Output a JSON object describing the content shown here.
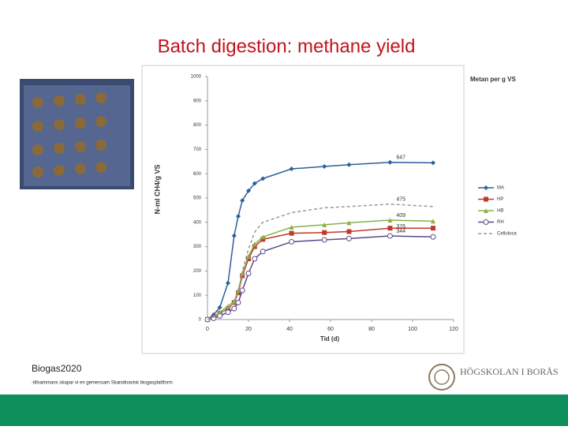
{
  "slide": {
    "title": "Batch digestion: methane yield",
    "footer_title": "Biogas2020",
    "footer_subtitle": "-tillsammans skapar vi en gemensam Skandinavisk biogasplattform",
    "logo": "HÖGSKOLAN I BORÅS"
  },
  "chart_data": {
    "type": "line",
    "title": "Metan per g VS",
    "x_label": "Tid (d)",
    "y_label": "N-ml CH4/g VS",
    "x": [
      0,
      3,
      6,
      10,
      13,
      15,
      17,
      20,
      23,
      27,
      41,
      57,
      69,
      89,
      110
    ],
    "xlim": [
      0,
      120
    ],
    "xticks": [
      0,
      20,
      40,
      60,
      80,
      100,
      120
    ],
    "ylim": [
      0,
      1000
    ],
    "yticks": [
      0,
      100,
      200,
      300,
      400,
      500,
      600,
      700,
      800,
      900,
      1000
    ],
    "legend": "right",
    "series": [
      {
        "name": "MA",
        "color": "#2e5f9a",
        "marker": "diamond",
        "values": [
          0,
          20,
          50,
          150,
          345,
          425,
          490,
          530,
          560,
          580,
          620,
          630,
          637,
          647,
          645
        ],
        "value_labels": [
          null,
          null,
          null,
          null,
          null,
          null,
          null,
          null,
          null,
          null,
          null,
          null,
          null,
          "647",
          null
        ]
      },
      {
        "name": "HP",
        "color": "#c0392b",
        "marker": "square",
        "values": [
          0,
          10,
          25,
          45,
          70,
          110,
          180,
          250,
          300,
          330,
          355,
          358,
          362,
          376,
          376
        ],
        "value_labels": [
          null,
          null,
          null,
          null,
          null,
          null,
          null,
          null,
          null,
          null,
          null,
          null,
          null,
          "376",
          null
        ]
      },
      {
        "name": "HB",
        "color": "#8ab04a",
        "marker": "triangle",
        "values": [
          0,
          12,
          30,
          55,
          75,
          120,
          190,
          260,
          310,
          340,
          380,
          390,
          398,
          409,
          405
        ],
        "value_labels": [
          null,
          null,
          null,
          null,
          null,
          null,
          null,
          null,
          null,
          null,
          null,
          null,
          null,
          "409",
          null
        ]
      },
      {
        "name": "RH",
        "color": "#5a4a8a",
        "marker": "circle",
        "values": [
          0,
          5,
          15,
          30,
          45,
          70,
          120,
          190,
          250,
          280,
          320,
          328,
          333,
          344,
          340
        ],
        "value_labels": [
          null,
          null,
          null,
          null,
          null,
          null,
          null,
          null,
          null,
          null,
          null,
          null,
          null,
          "344",
          null
        ]
      },
      {
        "name": "Cellulosa",
        "color": "#999999",
        "marker": "none",
        "dashed": true,
        "values": [
          0,
          10,
          25,
          45,
          70,
          110,
          200,
          290,
          360,
          400,
          440,
          460,
          465,
          475,
          465
        ],
        "value_labels": [
          null,
          null,
          null,
          null,
          null,
          null,
          null,
          null,
          null,
          null,
          null,
          null,
          null,
          "475",
          null
        ]
      }
    ]
  }
}
